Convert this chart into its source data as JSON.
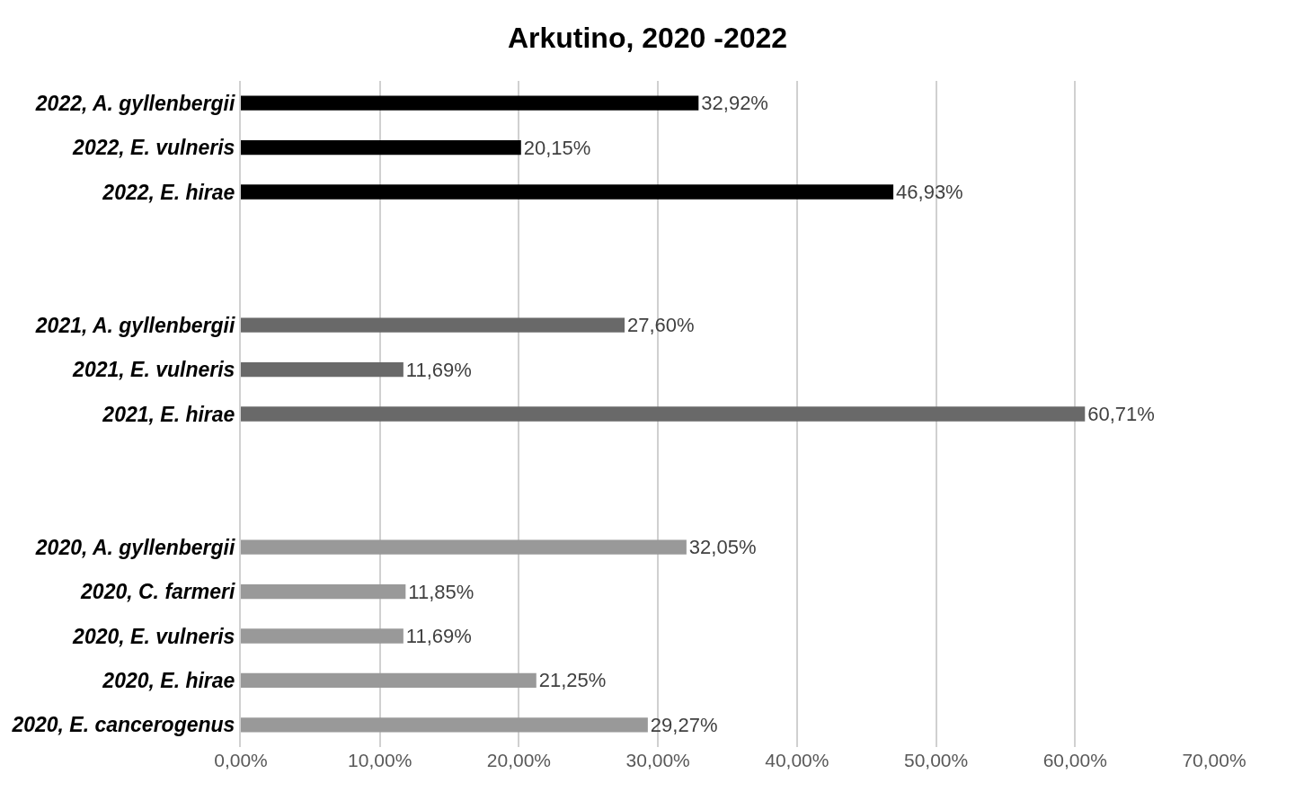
{
  "chart_data": {
    "type": "bar",
    "orientation": "horizontal",
    "title": "Arkutino, 2020 -2022",
    "categories": [
      "2022, A. gyllenbergii",
      "2022, E. vulneris",
      "2022, E. hirae",
      null,
      null,
      "2021, A. gyllenbergii",
      "2021, E. vulneris",
      "2021, E. hirae",
      null,
      null,
      "2020, A. gyllenbergii",
      "2020, C. farmeri",
      "2020, E. vulneris",
      "2020, E. hirae",
      "2020, E. cancerogenus"
    ],
    "values": [
      32.92,
      20.15,
      46.93,
      null,
      null,
      27.6,
      11.69,
      60.71,
      null,
      null,
      32.05,
      11.85,
      11.69,
      21.25,
      29.27
    ],
    "value_labels": [
      "32,92%",
      "20,15%",
      "46,93%",
      null,
      null,
      "27,60%",
      "11,69%",
      "60,71%",
      null,
      null,
      "32,05%",
      "11,85%",
      "11,69%",
      "21,25%",
      "29,27%"
    ],
    "colors": [
      "#000000",
      "#000000",
      "#000000",
      null,
      null,
      "#696969",
      "#696969",
      "#696969",
      null,
      null,
      "#999999",
      "#999999",
      "#999999",
      "#999999",
      "#999999"
    ],
    "xlim": [
      0,
      70
    ],
    "xticks": [
      {
        "value": 0,
        "label": "0,00%"
      },
      {
        "value": 10,
        "label": "10,00%"
      },
      {
        "value": 20,
        "label": "20,00%"
      },
      {
        "value": 30,
        "label": "30,00%"
      },
      {
        "value": 40,
        "label": "40,00%"
      },
      {
        "value": 50,
        "label": "50,00%"
      },
      {
        "value": 60,
        "label": "60,00%"
      },
      {
        "value": 70,
        "label": "70,00%"
      }
    ],
    "grid": "x"
  }
}
